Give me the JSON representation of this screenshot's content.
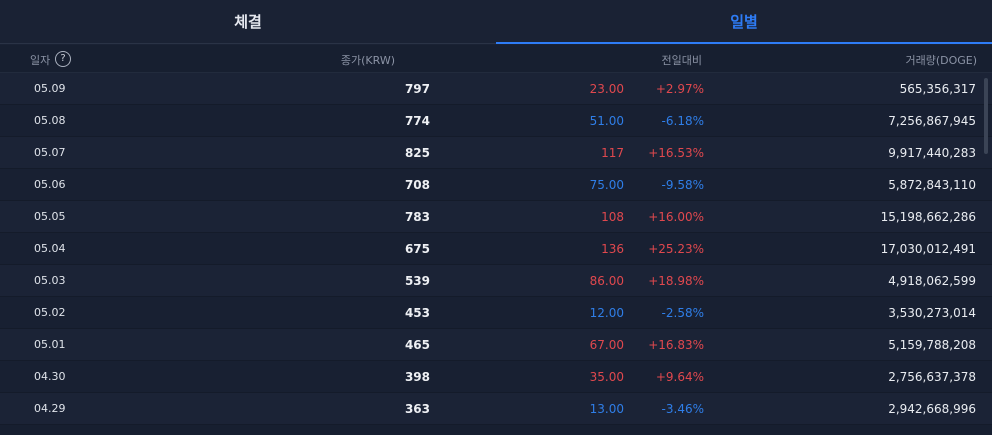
{
  "tabs": [
    {
      "label": "체결",
      "active": false
    },
    {
      "label": "일별",
      "active": true
    }
  ],
  "header": {
    "date": "일자",
    "help_glyph": "?",
    "close": "종가(KRW)",
    "change": "전일대비",
    "volume": "거래량(DOGE)"
  },
  "colors": {
    "up": "#e0484e",
    "down": "#2f7ee8",
    "accent": "#2e7cf6"
  },
  "rows": [
    {
      "date": "05.09",
      "close": "797",
      "diff": "23.00",
      "pct": "+2.97%",
      "volume": "565,356,317",
      "dir": "up"
    },
    {
      "date": "05.08",
      "close": "774",
      "diff": "51.00",
      "pct": "-6.18%",
      "volume": "7,256,867,945",
      "dir": "down"
    },
    {
      "date": "05.07",
      "close": "825",
      "diff": "117",
      "pct": "+16.53%",
      "volume": "9,917,440,283",
      "dir": "up"
    },
    {
      "date": "05.06",
      "close": "708",
      "diff": "75.00",
      "pct": "-9.58%",
      "volume": "5,872,843,110",
      "dir": "down"
    },
    {
      "date": "05.05",
      "close": "783",
      "diff": "108",
      "pct": "+16.00%",
      "volume": "15,198,662,286",
      "dir": "up"
    },
    {
      "date": "05.04",
      "close": "675",
      "diff": "136",
      "pct": "+25.23%",
      "volume": "17,030,012,491",
      "dir": "up"
    },
    {
      "date": "05.03",
      "close": "539",
      "diff": "86.00",
      "pct": "+18.98%",
      "volume": "4,918,062,599",
      "dir": "up"
    },
    {
      "date": "05.02",
      "close": "453",
      "diff": "12.00",
      "pct": "-2.58%",
      "volume": "3,530,273,014",
      "dir": "down"
    },
    {
      "date": "05.01",
      "close": "465",
      "diff": "67.00",
      "pct": "+16.83%",
      "volume": "5,159,788,208",
      "dir": "up"
    },
    {
      "date": "04.30",
      "close": "398",
      "diff": "35.00",
      "pct": "+9.64%",
      "volume": "2,756,637,378",
      "dir": "up"
    },
    {
      "date": "04.29",
      "close": "363",
      "diff": "13.00",
      "pct": "-3.46%",
      "volume": "2,942,668,996",
      "dir": "down"
    }
  ]
}
